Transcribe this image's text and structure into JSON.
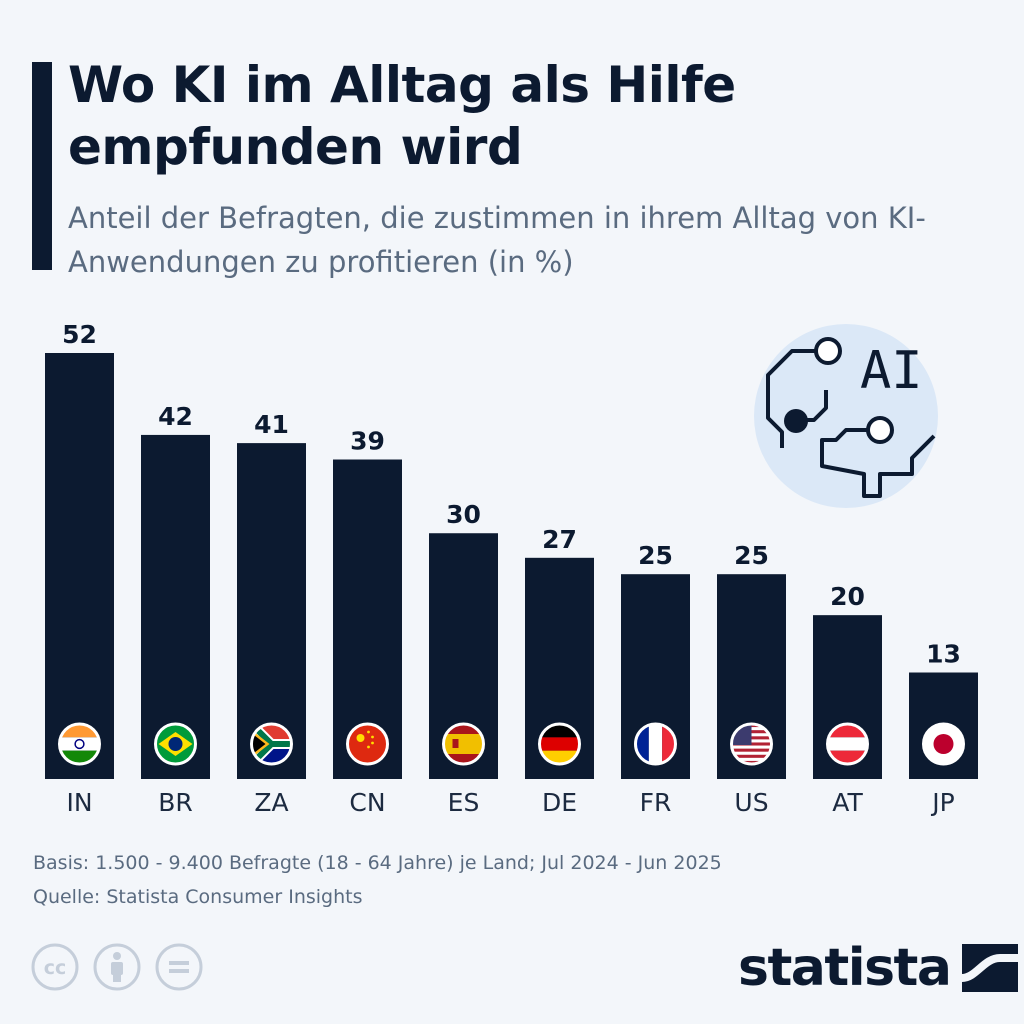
{
  "title": "Wo KI im Alltag als Hilfe empfunden wird",
  "subtitle": "Anteil der Befragten, die zustimmen in ihrem Alltag von KI-Anwendungen zu profitieren (in %)",
  "illustration": {
    "icon": "ai-brain-circuit-icon",
    "text": "AI"
  },
  "chart_data": {
    "type": "bar",
    "title": "Wo KI im Alltag als Hilfe empfunden wird",
    "subtitle": "Anteil der Befragten, die zustimmen in ihrem Alltag von KI-Anwendungen zu profitieren (in %)",
    "categories": [
      "IN",
      "BR",
      "ZA",
      "CN",
      "ES",
      "DE",
      "FR",
      "US",
      "AT",
      "JP"
    ],
    "values": [
      52,
      42,
      41,
      39,
      30,
      27,
      25,
      25,
      20,
      13
    ],
    "flags": [
      "flag-india-icon",
      "flag-brazil-icon",
      "flag-south-africa-icon",
      "flag-china-icon",
      "flag-spain-icon",
      "flag-germany-icon",
      "flag-france-icon",
      "flag-usa-icon",
      "flag-austria-icon",
      "flag-japan-icon"
    ],
    "xlabel": "",
    "ylabel": "",
    "ylim": [
      0,
      52
    ],
    "grid": false,
    "bar_color": "#0c1a30"
  },
  "footer": {
    "basis": "Basis: 1.500 - 9.400 Befragte (18 - 64 Jahre) je Land; Jul 2024 - Jun 2025",
    "source": "Quelle: Statista Consumer Insights",
    "license_icons": [
      "cc-icon",
      "attribution-icon",
      "no-derivatives-icon"
    ],
    "license_cc_text": "cc",
    "logo_text": "statista"
  },
  "colors": {
    "background": "#f3f6fa",
    "text": "#0c1a30",
    "muted": "#5a6b80",
    "illustration_bg": "#dbe8f7"
  }
}
